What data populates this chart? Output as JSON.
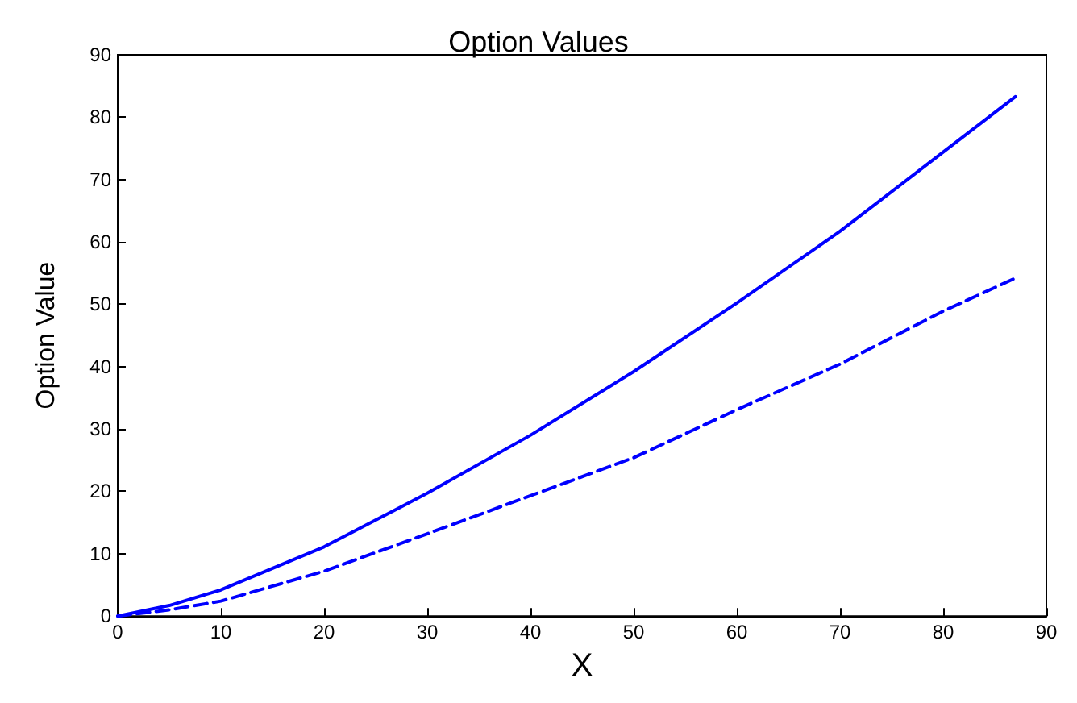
{
  "chart_data": {
    "type": "line",
    "title": "Option Values",
    "xlabel": "X",
    "ylabel": "Option Value",
    "xlim": [
      0,
      90
    ],
    "xticks": [
      0,
      10,
      20,
      30,
      40,
      50,
      60,
      70,
      80,
      90
    ],
    "ylim": [
      0,
      90
    ],
    "yticks": [
      0,
      10,
      20,
      30,
      40,
      50,
      60,
      70,
      80,
      90
    ],
    "grid": false,
    "marker": "none",
    "series": [
      {
        "color": "#0000ff",
        "line_style": "solid",
        "x": [
          0,
          5,
          10,
          20,
          30,
          40,
          50,
          60,
          70,
          80,
          87
        ],
        "values": [
          0,
          1.7,
          4.2,
          11.1,
          19.7,
          29.0,
          39.2,
          50.2,
          61.7,
          74.4,
          83.3
        ]
      },
      {
        "color": "#0000ff",
        "line_style": "dashed",
        "x": [
          0,
          5,
          10,
          20,
          30,
          40,
          50,
          60,
          70,
          80,
          87
        ],
        "values": [
          0,
          1.0,
          2.4,
          7.2,
          13.2,
          19.3,
          25.4,
          33.1,
          40.4,
          48.9,
          54.2
        ]
      }
    ]
  }
}
